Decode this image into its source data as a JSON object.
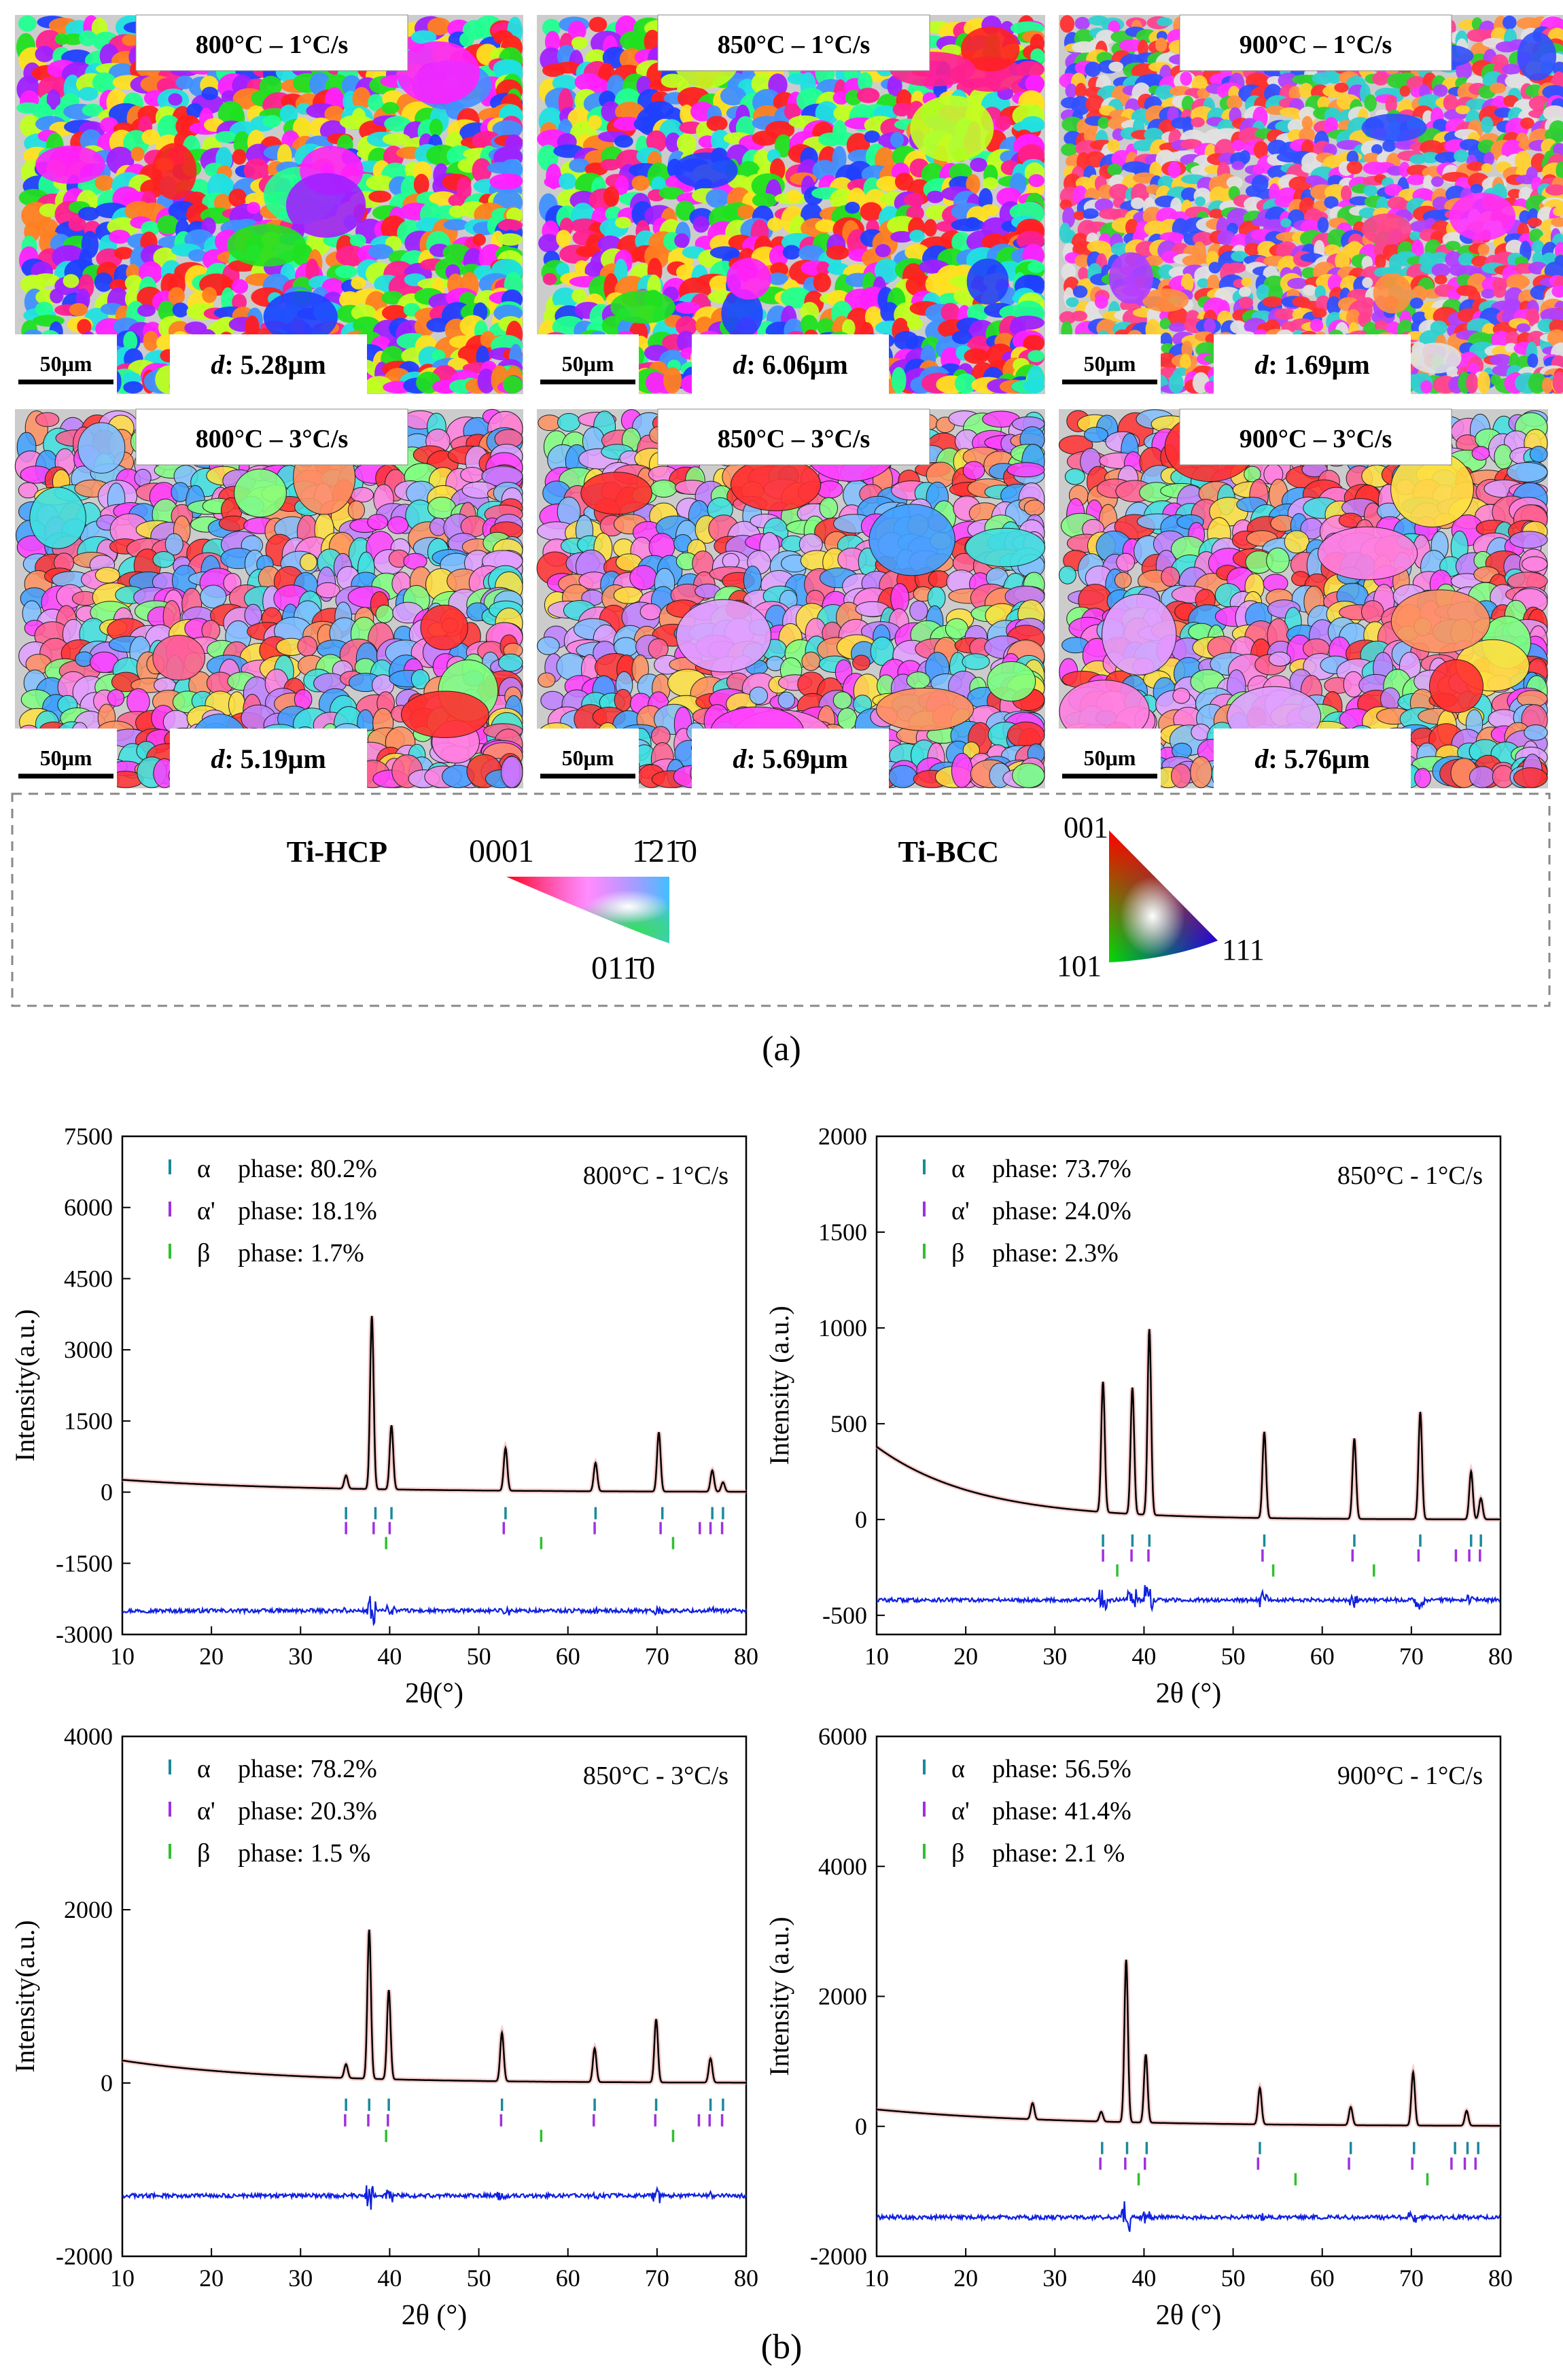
{
  "figure": {
    "panel_a_label": "(a)",
    "panel_b_label": "(b)",
    "ebsd_maps": [
      {
        "condition": "800°C – 1°C/s",
        "scale_bar": "50μm",
        "d_label": "d",
        "d_value": ": 5.28μm",
        "style": "fine",
        "seed": 11
      },
      {
        "condition": "850°C – 1°C/s",
        "scale_bar": "50μm",
        "d_label": "d",
        "d_value": ": 6.06μm",
        "style": "fine",
        "seed": 23
      },
      {
        "condition": "900°C – 1°C/s",
        "scale_bar": "50μm",
        "d_label": "d",
        "d_value": ": 1.69μm",
        "style": "ultrafine",
        "seed": 37
      },
      {
        "condition": "800°C – 3°C/s",
        "scale_bar": "50μm",
        "d_label": "d",
        "d_value": ": 5.19μm",
        "style": "pastel",
        "seed": 41
      },
      {
        "condition": "850°C – 3°C/s",
        "scale_bar": "50μm",
        "d_label": "d",
        "d_value": ": 5.69μm",
        "style": "pastel",
        "seed": 53
      },
      {
        "condition": "900°C – 3°C/s",
        "scale_bar": "50μm",
        "d_label": "d",
        "d_value": ": 5.76μm",
        "style": "pastel",
        "seed": 67
      }
    ],
    "legend": {
      "hcp_label": "Ti-HCP",
      "hcp_corner_0001": "0001",
      "hcp_corner_1210": "1̄21̄0",
      "hcp_corner_0110": "011̄0",
      "bcc_label": "Ti-BCC",
      "bcc_corner_001": "001",
      "bcc_corner_101": "101",
      "bcc_corner_111": "111"
    }
  },
  "chart_data": [
    {
      "type": "line",
      "title": "800°C - 1°C/s",
      "xlabel": "2θ(°)",
      "ylabel": "Intensity(a.u.)",
      "xlim": [
        10,
        80
      ],
      "ylim": [
        -3000,
        7500
      ],
      "xticks": [
        10,
        20,
        30,
        40,
        50,
        60,
        70,
        80
      ],
      "yticks": [
        -3000,
        -1500,
        0,
        1500,
        3000,
        4500,
        6000,
        7500
      ],
      "legend": [
        {
          "symbol": "α",
          "label": "phase: 80.2%",
          "color": "#1a8a9a"
        },
        {
          "symbol": "α'",
          "label": "phase: 18.1%",
          "color": "#a030e0"
        },
        {
          "symbol": "β",
          "label": "phase: 1.7%",
          "color": "#30c030"
        }
      ],
      "background": {
        "a": 260,
        "b": 0.05
      },
      "peaks": [
        [
          35.1,
          280
        ],
        [
          38.0,
          3650
        ],
        [
          40.2,
          1350
        ],
        [
          53.0,
          900
        ],
        [
          63.1,
          600
        ],
        [
          70.2,
          1250
        ],
        [
          76.2,
          450
        ],
        [
          77.4,
          200
        ]
      ],
      "difference_offset": -2500,
      "ticks_alpha": [
        35.1,
        38.4,
        40.2,
        53.0,
        63.1,
        70.6,
        76.2,
        77.4
      ],
      "ticks_alpha_prime": [
        35.1,
        38.2,
        40.0,
        52.8,
        63.0,
        70.4,
        74.8,
        76.0,
        77.3
      ],
      "ticks_beta": [
        39.6,
        57.0,
        71.8
      ]
    },
    {
      "type": "line",
      "title": "850°C - 1°C/s",
      "xlabel": "2θ (°)",
      "ylabel": "Intensity (a.u.)",
      "xlim": [
        10,
        80
      ],
      "ylim": [
        -600,
        2000
      ],
      "xticks": [
        10,
        20,
        30,
        40,
        50,
        60,
        70,
        80
      ],
      "yticks": [
        -500,
        0,
        500,
        1000,
        1500,
        2000
      ],
      "legend": [
        {
          "symbol": "α",
          "label": "phase: 73.7%",
          "color": "#1a8a9a"
        },
        {
          "symbol": "α'",
          "label": "phase: 24.0%",
          "color": "#a030e0"
        },
        {
          "symbol": "β",
          "label": "phase: 2.3%",
          "color": "#30c030"
        }
      ],
      "background": {
        "a": 380,
        "b": 0.09
      },
      "peaks": [
        [
          35.4,
          680
        ],
        [
          38.7,
          660
        ],
        [
          40.6,
          970
        ],
        [
          53.5,
          450
        ],
        [
          63.6,
          420
        ],
        [
          71.0,
          560
        ],
        [
          76.7,
          250
        ],
        [
          77.8,
          110
        ]
      ],
      "difference_offset": -420,
      "ticks_alpha": [
        35.4,
        38.7,
        40.6,
        53.5,
        63.6,
        71.0,
        76.7,
        77.8
      ],
      "ticks_alpha_prime": [
        35.4,
        38.6,
        40.5,
        53.3,
        63.4,
        70.8,
        75.0,
        76.5,
        77.7
      ],
      "ticks_beta": [
        37.0,
        54.5,
        65.8
      ]
    },
    {
      "type": "line",
      "title": "850°C - 3°C/s",
      "xlabel": "2θ (°)",
      "ylabel": "Intensity(a.u.)",
      "xlim": [
        10,
        80
      ],
      "ylim": [
        -2000,
        4000
      ],
      "xticks": [
        10,
        20,
        30,
        40,
        50,
        60,
        70,
        80
      ],
      "yticks": [
        -2000,
        0,
        2000,
        4000
      ],
      "legend": [
        {
          "symbol": "α",
          "label": "phase: 78.2%",
          "color": "#1a8a9a"
        },
        {
          "symbol": "α'",
          "label": "phase: 20.3%",
          "color": "#a030e0"
        },
        {
          "symbol": "β",
          "label": "phase: 1.5 %",
          "color": "#30c030"
        }
      ],
      "background": {
        "a": 260,
        "b": 0.06
      },
      "peaks": [
        [
          35.1,
          160
        ],
        [
          37.7,
          1720
        ],
        [
          39.9,
          1030
        ],
        [
          52.6,
          560
        ],
        [
          63.0,
          390
        ],
        [
          69.9,
          730
        ],
        [
          76.0,
          280
        ]
      ],
      "difference_offset": -1300,
      "ticks_alpha": [
        35.1,
        37.7,
        39.9,
        52.6,
        63.0,
        69.9,
        76.0,
        77.4
      ],
      "ticks_alpha_prime": [
        35.0,
        37.6,
        39.8,
        52.5,
        62.9,
        69.8,
        74.7,
        75.9,
        77.3
      ],
      "ticks_beta": [
        39.6,
        57.0,
        71.8
      ]
    },
    {
      "type": "line",
      "title": "900°C - 1°C/s",
      "xlabel": "2θ (°)",
      "ylabel": "Intensity (a.u.)",
      "xlim": [
        10,
        80
      ],
      "ylim": [
        -2000,
        6000
      ],
      "xticks": [
        10,
        20,
        30,
        40,
        50,
        60,
        70,
        80
      ],
      "yticks": [
        -2000,
        0,
        2000,
        4000,
        6000
      ],
      "legend": [
        {
          "symbol": "α",
          "label": "phase: 56.5%",
          "color": "#1a8a9a"
        },
        {
          "symbol": "α'",
          "label": "phase: 41.4%",
          "color": "#a030e0"
        },
        {
          "symbol": "β",
          "label": "phase: 2.1 %",
          "color": "#30c030"
        }
      ],
      "background": {
        "a": 260,
        "b": 0.05
      },
      "peaks": [
        [
          27.5,
          250
        ],
        [
          35.2,
          150
        ],
        [
          38.0,
          2500
        ],
        [
          40.2,
          1050
        ],
        [
          53.0,
          560
        ],
        [
          63.2,
          280
        ],
        [
          70.2,
          820
        ],
        [
          76.2,
          230
        ]
      ],
      "difference_offset": -1400,
      "ticks_alpha": [
        35.3,
        38.1,
        40.3,
        53.0,
        63.2,
        70.3,
        74.9,
        76.3,
        77.5
      ],
      "ticks_alpha_prime": [
        35.1,
        37.9,
        40.1,
        52.8,
        63.0,
        70.1,
        74.5,
        76.0,
        77.2
      ],
      "ticks_beta": [
        39.4,
        57.0,
        71.8
      ]
    }
  ]
}
